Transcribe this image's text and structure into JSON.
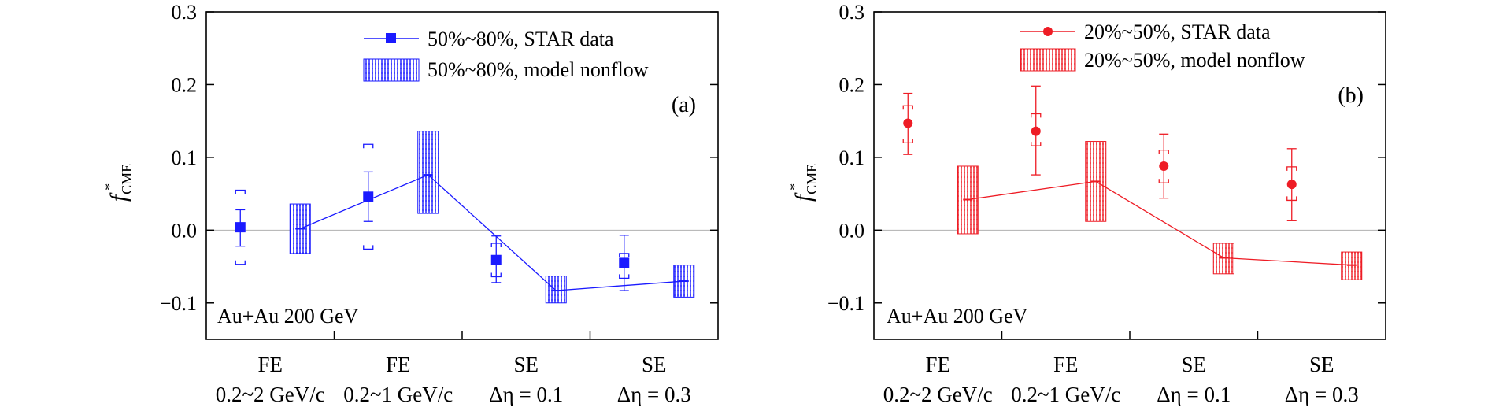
{
  "chart_data": [
    {
      "type": "scatter",
      "panel_label": "(a)",
      "annotation": "Au+Au 200 GeV",
      "ylabel": {
        "main": "f",
        "sub": "CME",
        "sup": "*"
      },
      "ylim": [
        -0.15,
        0.3
      ],
      "yticks": [
        {
          "v": 0.3,
          "label": "0.3"
        },
        {
          "v": 0.2,
          "label": "0.2"
        },
        {
          "v": 0.1,
          "label": "0.1"
        },
        {
          "v": 0.0,
          "label": "0.0"
        },
        {
          "v": -0.1,
          "label": "−0.1"
        }
      ],
      "categories": [
        {
          "line1": "FE",
          "line2": "0.2~2 GeV/c"
        },
        {
          "line1": "FE",
          "line2": "0.2~1 GeV/c"
        },
        {
          "line1": "SE",
          "line2": "Δη = 0.1"
        },
        {
          "line1": "SE",
          "line2": "Δη = 0.3"
        }
      ],
      "color": "#1a1aff",
      "zero_line": true,
      "series": [
        {
          "name": "50%~80%, STAR data",
          "marker": "square",
          "values": [
            0.004,
            0.046,
            -0.041,
            -0.045
          ],
          "stat_low": [
            -0.022,
            0.012,
            -0.072,
            -0.083
          ],
          "stat_high": [
            0.028,
            0.08,
            -0.008,
            -0.007
          ],
          "sys_low": [
            -0.047,
            -0.026,
            -0.064,
            -0.066
          ],
          "sys_high": [
            0.055,
            0.118,
            -0.018,
            -0.032
          ]
        },
        {
          "name": "50%~80%, model nonflow",
          "marker": "band",
          "values": [
            0.002,
            0.076,
            -0.083,
            -0.07
          ],
          "band_low": [
            -0.032,
            0.023,
            -0.1,
            -0.092
          ],
          "band_high": [
            0.036,
            0.136,
            -0.063,
            -0.048
          ]
        }
      ]
    },
    {
      "type": "scatter",
      "panel_label": "(b)",
      "annotation": "Au+Au 200 GeV",
      "ylabel": {
        "main": "f",
        "sub": "CME",
        "sup": "*"
      },
      "ylim": [
        -0.15,
        0.3
      ],
      "yticks": [
        {
          "v": 0.3,
          "label": "0.3"
        },
        {
          "v": 0.2,
          "label": "0.2"
        },
        {
          "v": 0.1,
          "label": "0.1"
        },
        {
          "v": 0.0,
          "label": "0.0"
        },
        {
          "v": -0.1,
          "label": "−0.1"
        }
      ],
      "categories": [
        {
          "line1": "FE",
          "line2": "0.2~2 GeV/c"
        },
        {
          "line1": "FE",
          "line2": "0.2~1 GeV/c"
        },
        {
          "line1": "SE",
          "line2": "Δη = 0.1"
        },
        {
          "line1": "SE",
          "line2": "Δη = 0.3"
        }
      ],
      "color": "#ee1c25",
      "zero_line": true,
      "series": [
        {
          "name": "20%~50%, STAR data",
          "marker": "circle",
          "values": [
            0.147,
            0.136,
            0.088,
            0.063
          ],
          "stat_low": [
            0.104,
            0.076,
            0.044,
            0.013
          ],
          "stat_high": [
            0.188,
            0.198,
            0.132,
            0.112
          ],
          "sys_low": [
            0.12,
            0.116,
            0.065,
            0.041
          ],
          "sys_high": [
            0.171,
            0.16,
            0.11,
            0.087
          ]
        },
        {
          "name": "20%~50%, model nonflow",
          "marker": "band",
          "values": [
            0.042,
            0.067,
            -0.038,
            -0.048
          ],
          "band_low": [
            -0.005,
            0.012,
            -0.06,
            -0.068
          ],
          "band_high": [
            0.088,
            0.122,
            -0.018,
            -0.03
          ]
        }
      ]
    }
  ]
}
